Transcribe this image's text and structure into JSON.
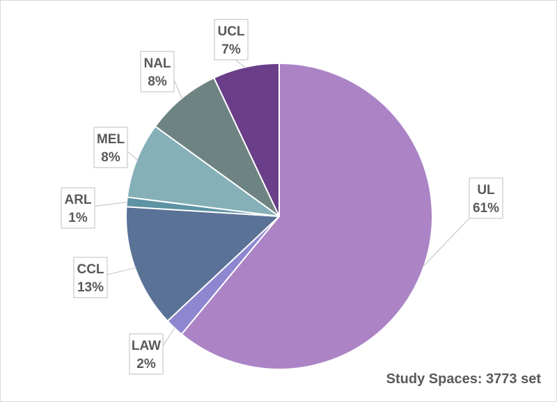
{
  "chart_data": {
    "type": "pie",
    "title": "",
    "slices": [
      {
        "label": "UL",
        "percent_label": "61%",
        "value": 61,
        "color": "#ac84c6"
      },
      {
        "label": "LAW",
        "percent_label": "2%",
        "value": 2,
        "color": "#8e87d0"
      },
      {
        "label": "CCL",
        "percent_label": "13%",
        "value": 13,
        "color": "#5b7297"
      },
      {
        "label": "ARL",
        "percent_label": "1%",
        "value": 1,
        "color": "#5d93a3"
      },
      {
        "label": "MEL",
        "percent_label": "8%",
        "value": 8,
        "color": "#85b0b8"
      },
      {
        "label": "NAL",
        "percent_label": "8%",
        "value": 8,
        "color": "#6e8482"
      },
      {
        "label": "UCL",
        "percent_label": "7%",
        "value": 7,
        "color": "#6a3e88"
      }
    ],
    "footnote": "Study Spaces: 3773 set"
  }
}
